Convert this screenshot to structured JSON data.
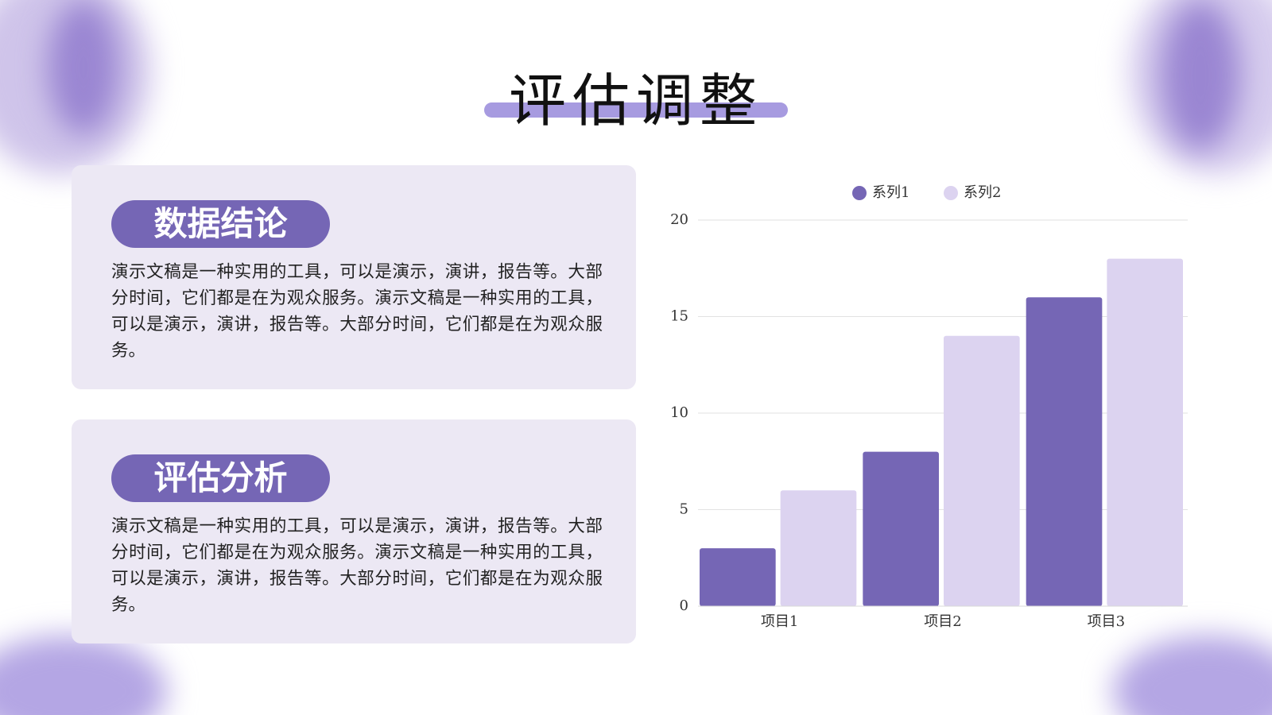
{
  "title": "评估调整",
  "cards": [
    {
      "heading": "数据结论",
      "text": "演示文稿是一种实用的工具，可以是演示，演讲，报告等。大部分时间，它们都是在为观众服务。演示文稿是一种实用的工具，可以是演示，演讲，报告等。大部分时间，它们都是在为观众服务。"
    },
    {
      "heading": "评估分析",
      "text": "演示文稿是一种实用的工具，可以是演示，演讲，报告等。大部分时间，它们都是在为观众服务。演示文稿是一种实用的工具，可以是演示，演讲，报告等。大部分时间，它们都是在为观众服务。"
    }
  ],
  "chart_data": {
    "type": "bar",
    "categories": [
      "项目1",
      "项目2",
      "项目3"
    ],
    "series": [
      {
        "name": "系列1",
        "color": "#7566b5",
        "values": [
          3,
          8,
          16
        ]
      },
      {
        "name": "系列2",
        "color": "#dcd3f0",
        "values": [
          6,
          14,
          18
        ]
      }
    ],
    "ylim": [
      0,
      20
    ],
    "yticks": [
      0,
      5,
      10,
      15,
      20
    ],
    "grid": true,
    "legend": "top"
  }
}
